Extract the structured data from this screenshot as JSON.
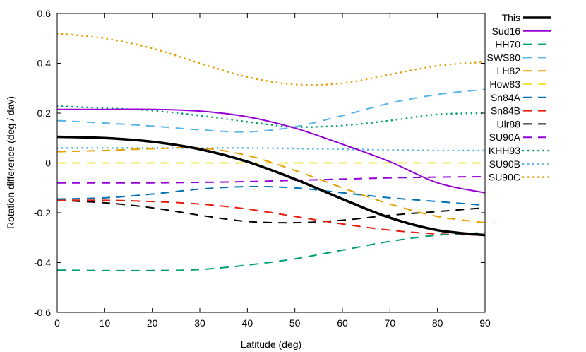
{
  "chart_data": {
    "type": "line",
    "title": "",
    "xlabel": "Latitude (deg)",
    "ylabel": "Rotation difference (deg / day)",
    "xlim": [
      0,
      90
    ],
    "ylim": [
      -0.6,
      0.6
    ],
    "x_ticks": [
      0,
      10,
      20,
      30,
      40,
      50,
      60,
      70,
      80,
      90
    ],
    "x_tick_labels": [
      "0",
      "10",
      "20",
      "30",
      "40",
      "50",
      "60",
      "70",
      "80",
      "90"
    ],
    "y_ticks": [
      -0.6,
      -0.4,
      -0.2,
      0,
      0.2,
      0.4,
      0.6
    ],
    "y_tick_labels": [
      "-0.6",
      "-0.4",
      "-0.2",
      "0",
      "0.2",
      "0.4",
      "0.6"
    ],
    "grid": false,
    "legend_position": "outside-right",
    "x": [
      0,
      10,
      20,
      30,
      40,
      50,
      60,
      70,
      80,
      90
    ],
    "series": [
      {
        "name": "This",
        "color": "#000000",
        "style": "solid-thick",
        "values": [
          0.105,
          0.1,
          0.085,
          0.055,
          0.005,
          -0.065,
          -0.145,
          -0.22,
          -0.27,
          -0.29
        ]
      },
      {
        "name": "Sud16",
        "color": "#9400d3",
        "style": "solid",
        "values": [
          0.215,
          0.215,
          0.215,
          0.208,
          0.185,
          0.14,
          0.075,
          0.005,
          -0.08,
          -0.12
        ]
      },
      {
        "name": "HH70",
        "color": "#009e73",
        "style": "dash",
        "values": [
          -0.43,
          -0.432,
          -0.432,
          -0.428,
          -0.41,
          -0.385,
          -0.35,
          -0.315,
          -0.29,
          -0.28
        ]
      },
      {
        "name": "SWS80",
        "color": "#56b4e9",
        "style": "dash",
        "values": [
          0.17,
          0.16,
          0.148,
          0.133,
          0.125,
          0.145,
          0.19,
          0.24,
          0.275,
          0.295
        ]
      },
      {
        "name": "LH82",
        "color": "#e69f00",
        "style": "dash",
        "values": [
          0.045,
          0.05,
          0.057,
          0.06,
          0.03,
          -0.03,
          -0.1,
          -0.165,
          -0.215,
          -0.24
        ]
      },
      {
        "name": "How83",
        "color": "#f0e442",
        "style": "dash",
        "values": [
          0,
          0,
          0,
          0,
          0,
          0,
          0,
          0,
          0,
          0
        ]
      },
      {
        "name": "Sn84A",
        "color": "#0072b2",
        "style": "dash",
        "values": [
          -0.145,
          -0.14,
          -0.125,
          -0.105,
          -0.095,
          -0.1,
          -0.12,
          -0.14,
          -0.155,
          -0.17
        ]
      },
      {
        "name": "Sn84B",
        "color": "#e51e10",
        "style": "dash",
        "values": [
          -0.15,
          -0.15,
          -0.155,
          -0.165,
          -0.185,
          -0.215,
          -0.245,
          -0.27,
          -0.285,
          -0.29
        ]
      },
      {
        "name": "Ulr88",
        "color": "#000000",
        "style": "dash",
        "values": [
          -0.15,
          -0.16,
          -0.18,
          -0.21,
          -0.235,
          -0.24,
          -0.23,
          -0.21,
          -0.195,
          -0.18
        ]
      },
      {
        "name": "SU90A",
        "color": "#9400d3",
        "style": "dash",
        "values": [
          -0.08,
          -0.08,
          -0.08,
          -0.078,
          -0.075,
          -0.07,
          -0.065,
          -0.06,
          -0.057,
          -0.055
        ]
      },
      {
        "name": "KHH93",
        "color": "#009e73",
        "style": "dot",
        "values": [
          0.228,
          0.22,
          0.21,
          0.19,
          0.165,
          0.145,
          0.15,
          0.17,
          0.195,
          0.2
        ]
      },
      {
        "name": "SU90B",
        "color": "#56b4e9",
        "style": "dot",
        "values": [
          0.06,
          0.06,
          0.06,
          0.06,
          0.06,
          0.058,
          0.055,
          0.052,
          0.05,
          0.05
        ]
      },
      {
        "name": "SU90C",
        "color": "#e69f00",
        "style": "dot",
        "values": [
          0.52,
          0.5,
          0.46,
          0.4,
          0.345,
          0.315,
          0.32,
          0.355,
          0.39,
          0.405
        ]
      }
    ]
  }
}
